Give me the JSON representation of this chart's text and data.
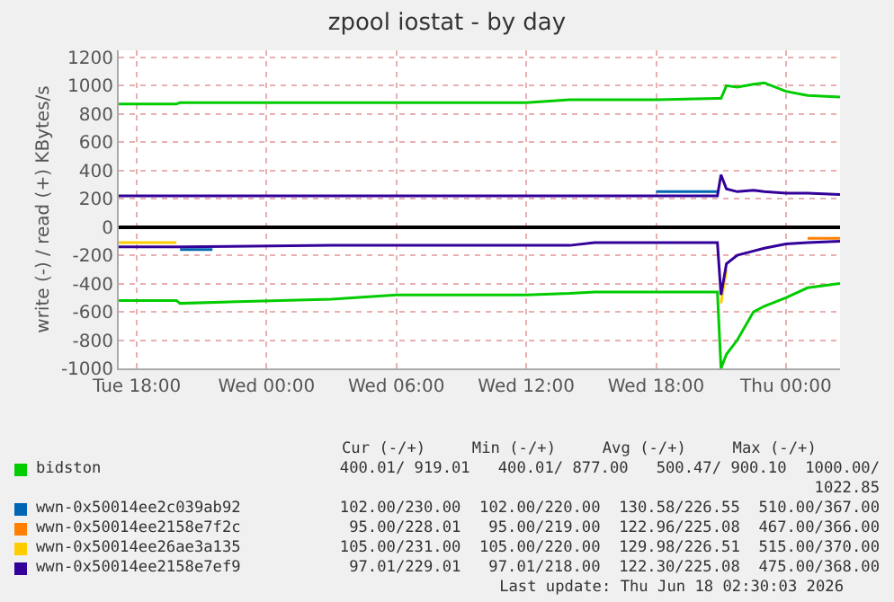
{
  "chart_data": {
    "type": "line",
    "title": "zpool iostat - by day",
    "ylabel": "write (-) / read (+) KBytes/s",
    "x": [
      "2026-06-16T17:10",
      "2026-06-16T19:50",
      "2026-06-16T20:00",
      "2026-06-17T03:00",
      "2026-06-17T06:00",
      "2026-06-17T12:00",
      "2026-06-17T14:00",
      "2026-06-17T15:10",
      "2026-06-17T18:00",
      "2026-06-17T20:50",
      "2026-06-17T21:00",
      "2026-06-17T21:15",
      "2026-06-17T21:45",
      "2026-06-17T22:30",
      "2026-06-17T23:00",
      "2026-06-18T00:00",
      "2026-06-18T01:00",
      "2026-06-18T02:30"
    ],
    "xlim": [
      "2026-06-16T17:10",
      "2026-06-18T02:30"
    ],
    "xticks": [
      {
        "value": "2026-06-16T18:00",
        "label": "Tue 18:00"
      },
      {
        "value": "2026-06-17T00:00",
        "label": "Wed 00:00"
      },
      {
        "value": "2026-06-17T06:00",
        "label": "Wed 06:00"
      },
      {
        "value": "2026-06-17T12:00",
        "label": "Wed 12:00"
      },
      {
        "value": "2026-06-17T18:00",
        "label": "Wed 18:00"
      },
      {
        "value": "2026-06-18T00:00",
        "label": "Thu 00:00"
      }
    ],
    "ylim": [
      -1000,
      1250
    ],
    "yticks": [
      -1000,
      -800,
      -600,
      -400,
      -200,
      0,
      200,
      400,
      600,
      800,
      1000,
      1200
    ],
    "series": [
      {
        "name": "bidston",
        "color": "#00cc00",
        "values": [
          -520,
          -520,
          -540,
          -510,
          -480,
          -480,
          -470,
          -460,
          -460,
          -460,
          -1000,
          -900,
          -800,
          -600,
          -560,
          -500,
          -430,
          -400
        ]
      },
      {
        "name": "wwn-0x50014ee2c039ab92",
        "color": "#0066b3",
        "x": [
          "2026-06-16T20:00",
          "2026-06-16T21:30"
        ],
        "values": [
          -160,
          -160
        ]
      },
      {
        "name": "wwn-0x50014ee2158e7f2c",
        "color": "#ff8000",
        "values": [
          null,
          null,
          null,
          null,
          null,
          null,
          null,
          null,
          null,
          null,
          null,
          null,
          null,
          null,
          null,
          null,
          -80,
          -80
        ]
      },
      {
        "name": "wwn-0x50014ee26ae3a135",
        "color": "#ffcc00",
        "values": [
          -110,
          -110,
          null,
          null,
          null,
          null,
          null,
          null,
          null,
          null,
          -540,
          -300,
          null,
          null,
          null,
          null,
          null,
          null
        ]
      },
      {
        "name": "wwn-0x50014ee2158e7ef9",
        "color": "#330099",
        "values": [
          -140,
          -140,
          -140,
          -130,
          -130,
          -130,
          -130,
          -110,
          -110,
          -110,
          -480,
          -260,
          -200,
          -170,
          -150,
          -120,
          -110,
          -100
        ]
      },
      {
        "color": "#00cc00",
        "values": [
          870,
          870,
          880,
          880,
          880,
          880,
          900,
          900,
          900,
          910,
          910,
          1000,
          990,
          1010,
          1020,
          960,
          930,
          920
        ]
      },
      {
        "color": "#0066b3",
        "values": [
          null,
          null,
          null,
          null,
          null,
          null,
          null,
          null,
          250,
          250,
          null,
          null,
          null,
          null,
          null,
          null,
          null,
          null
        ]
      },
      {
        "color": "#330099",
        "values": [
          220,
          220,
          220,
          220,
          220,
          220,
          220,
          220,
          220,
          220,
          370,
          270,
          250,
          260,
          250,
          240,
          240,
          230
        ]
      }
    ],
    "annotations": [
      "Cur (-/+)     Min (-/+)     Avg (-/+)     Max (-/+)",
      "400.01/ 919.01   400.01/ 877.00   500.47/ 900.10  1000.00/ 1022.85",
      "102.00/230.00  102.00/220.00  130.58/226.55  510.00/367.00",
      "95.00/228.01   95.00/219.00  122.96/225.08  467.00/366.00",
      "105.00/231.00  105.00/220.00  129.98/226.51  515.00/370.00",
      "97.01/229.01   97.01/218.00  122.30/225.08  475.00/368.00",
      "Last update: Thu Jun 18 02:30:03 2026"
    ],
    "grid": true,
    "legend": "bottom",
    "marker": "none",
    "line_style": "solid"
  }
}
